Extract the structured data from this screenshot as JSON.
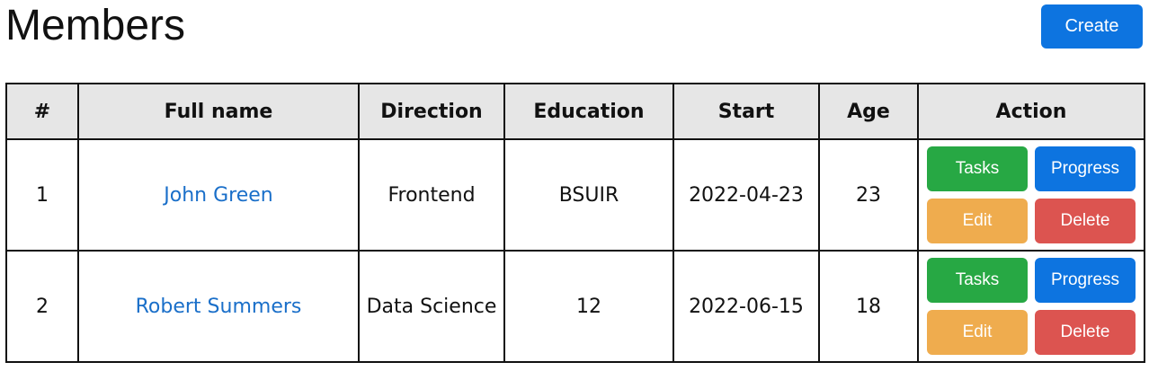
{
  "header": {
    "title": "Members",
    "create_label": "Create"
  },
  "table": {
    "columns": [
      "#",
      "Full name",
      "Direction",
      "Education",
      "Start",
      "Age",
      "Action"
    ],
    "rows": [
      {
        "num": "1",
        "name": "John Green",
        "direction": "Frontend",
        "education": "BSUIR",
        "start": "2022-04-23",
        "age": "23"
      },
      {
        "num": "2",
        "name": "Robert Summers",
        "direction": "Data Science",
        "education": "12",
        "start": "2022-06-15",
        "age": "18"
      }
    ],
    "actions": {
      "tasks": "Tasks",
      "progress": "Progress",
      "edit": "Edit",
      "delete": "Delete"
    }
  },
  "colors": {
    "primary": "#0d74e0",
    "success": "#27a844",
    "warning": "#efac4e",
    "danger": "#dc5450",
    "link": "#1a6fc9",
    "header_bg": "#e6e6e6"
  }
}
